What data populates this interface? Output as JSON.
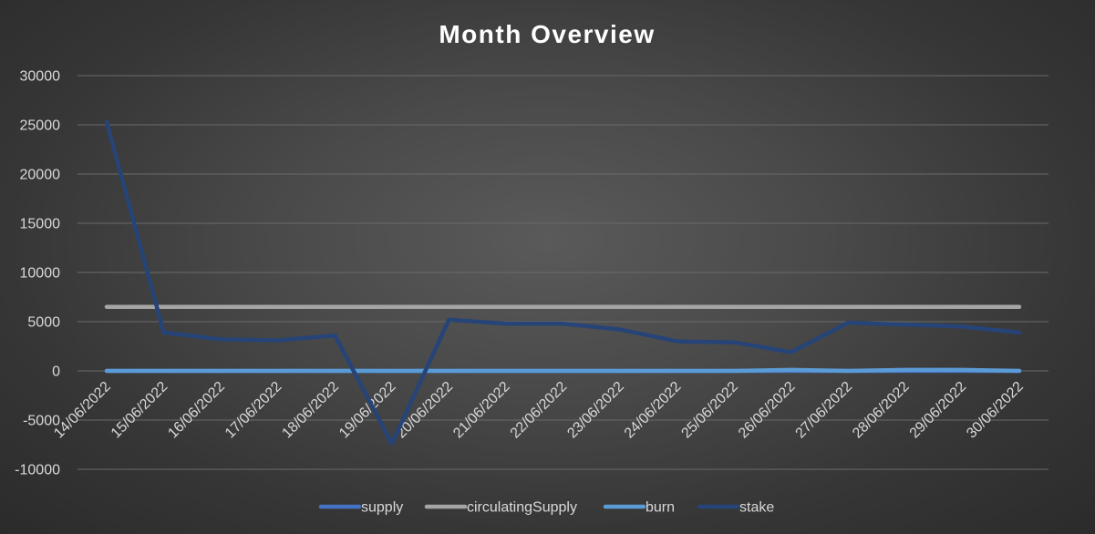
{
  "chart_data": {
    "type": "line",
    "title": "Month Overview",
    "xlabel": "",
    "ylabel": "",
    "ylim": [
      -10000,
      30000
    ],
    "y_ticks": [
      -10000,
      -5000,
      0,
      5000,
      10000,
      15000,
      20000,
      25000,
      30000
    ],
    "grid": true,
    "legend_position": "bottom",
    "categories": [
      "14/06/2022",
      "15/06/2022",
      "16/06/2022",
      "17/06/2022",
      "18/06/2022",
      "19/06/2022",
      "20/06/2022",
      "21/06/2022",
      "22/06/2022",
      "23/06/2022",
      "24/06/2022",
      "25/06/2022",
      "26/06/2022",
      "27/06/2022",
      "28/06/2022",
      "29/06/2022",
      "30/06/2022"
    ],
    "series": [
      {
        "name": "supply",
        "color": "#4472c4",
        "values": [
          0,
          0,
          0,
          0,
          0,
          0,
          0,
          0,
          0,
          0,
          0,
          0,
          0,
          0,
          0,
          0,
          0
        ]
      },
      {
        "name": "circulatingSupply",
        "color": "#a5a5a5",
        "values": [
          6500,
          6500,
          6500,
          6500,
          6500,
          6500,
          6500,
          6500,
          6500,
          6500,
          6500,
          6500,
          6500,
          6500,
          6500,
          6500,
          6500
        ]
      },
      {
        "name": "burn",
        "color": "#5b9bd5",
        "values": [
          0,
          0,
          0,
          0,
          0,
          0,
          0,
          0,
          0,
          0,
          0,
          0,
          100,
          0,
          100,
          100,
          0
        ]
      },
      {
        "name": "stake",
        "color": "#264478",
        "values": [
          25300,
          3900,
          3200,
          3100,
          3600,
          -7400,
          5200,
          4800,
          4800,
          4200,
          3000,
          2900,
          1900,
          4900,
          4700,
          4500,
          3900
        ]
      }
    ]
  }
}
